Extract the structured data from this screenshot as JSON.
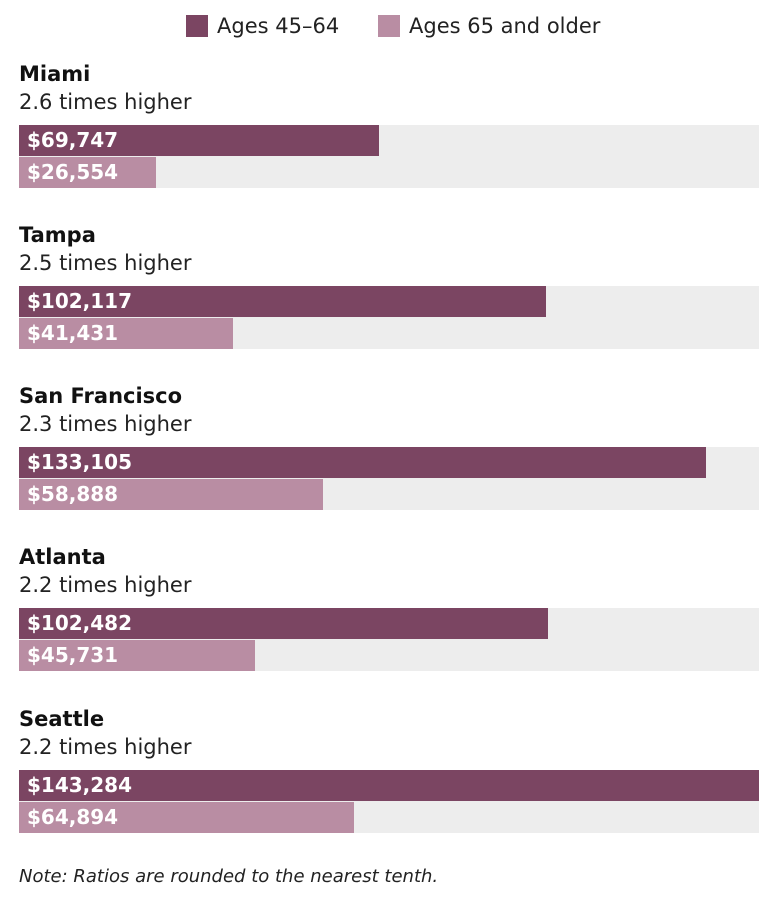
{
  "colors": {
    "ages_45_64": "#7b4562",
    "ages_65_older": "#b98da3",
    "track": "#ededed"
  },
  "legend": {
    "items": [
      {
        "label": "Ages 45–64"
      },
      {
        "label": "Ages 65 and older"
      }
    ]
  },
  "chart_data": {
    "type": "bar",
    "orientation": "horizontal",
    "categories": [
      "Miami",
      "Tampa",
      "San Francisco",
      "Atlanta",
      "Seattle"
    ],
    "series": [
      {
        "name": "Ages 45–64",
        "values": [
          69747,
          102117,
          133105,
          102482,
          143284
        ]
      },
      {
        "name": "Ages 65 and older",
        "values": [
          26554,
          41431,
          58888,
          45731,
          64894
        ]
      }
    ],
    "value_labels": [
      [
        "$69,747",
        "$102,117",
        "$133,105",
        "$102,482",
        "$143,284"
      ],
      [
        "$26,554",
        "$41,431",
        "$58,888",
        "$45,731",
        "$64,894"
      ]
    ],
    "ratios": [
      "2.6 times higher",
      "2.5 times higher",
      "2.3 times higher",
      "2.2 times higher",
      "2.2 times higher"
    ],
    "xlim": [
      0,
      143284
    ],
    "legend_position": "top-center",
    "grid": false,
    "note": "Note: Ratios are rounded to the nearest tenth."
  }
}
